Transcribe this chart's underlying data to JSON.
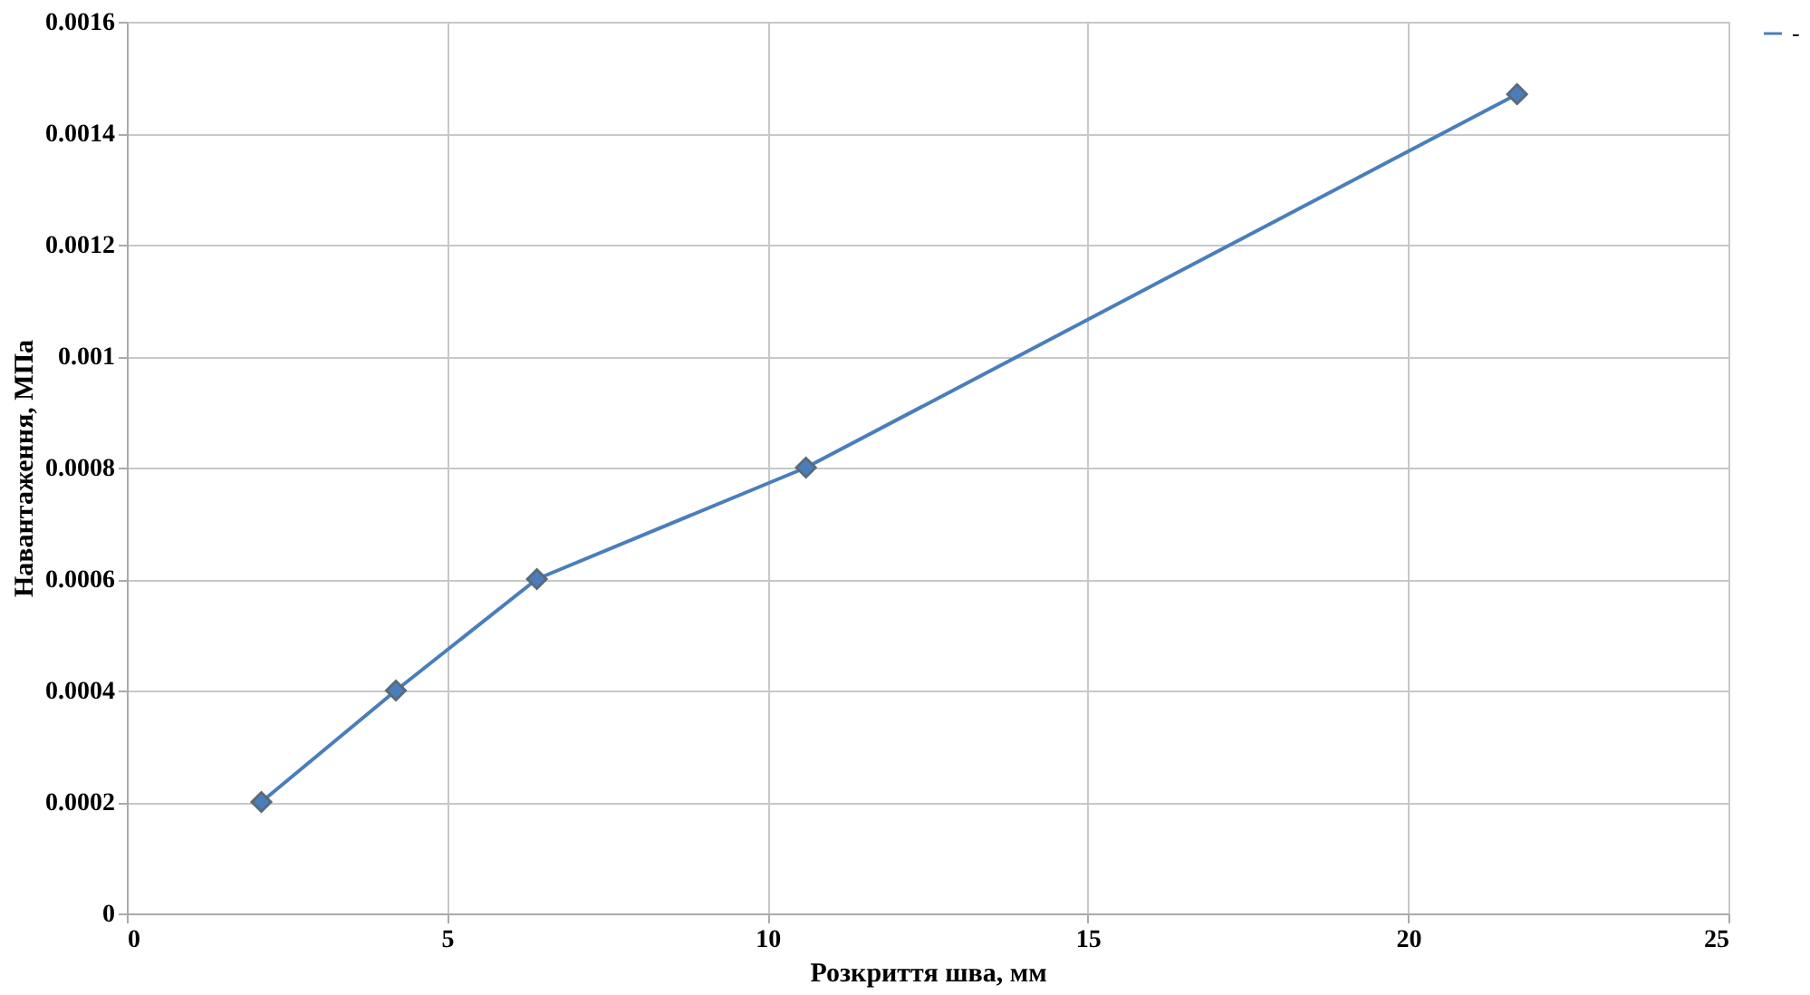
{
  "chart_data": {
    "type": "line",
    "xlabel": "Розкриття шва, мм",
    "ylabel": "Навантаження,  МПа",
    "xlim": [
      0,
      25
    ],
    "xticks": [
      0,
      5,
      10,
      15,
      20,
      25
    ],
    "ylim": [
      0,
      0.0016
    ],
    "yticks": [
      0,
      0.0002,
      0.0004,
      0.0006,
      0.0008,
      0.001,
      0.0012,
      0.0014,
      0.0016
    ],
    "grid": true,
    "legend": "right",
    "marker": "diamond",
    "line_style": "solid",
    "series": [
      {
        "name": "-",
        "color": "#4a7ebb",
        "x": [
          2.1,
          4.2,
          6.4,
          10.6,
          21.7
        ],
        "values": [
          0.0002,
          0.0004,
          0.0006,
          0.0008,
          0.00147
        ]
      }
    ]
  }
}
